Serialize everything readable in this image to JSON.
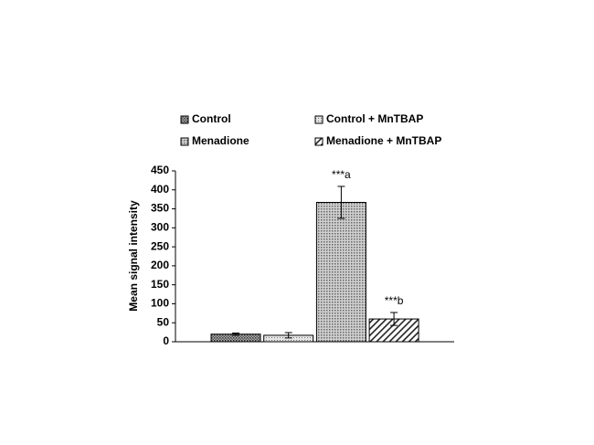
{
  "chart_data": {
    "type": "bar",
    "y_label": "Mean signal intensity",
    "ylim": [
      0,
      450
    ],
    "yticks": [
      0,
      50,
      100,
      150,
      200,
      250,
      300,
      350,
      400,
      450
    ],
    "series": [
      {
        "name": "Control",
        "pattern": "dark",
        "values": [
          20
        ],
        "errors": [
          3
        ]
      },
      {
        "name": "Control + MnTBAP",
        "pattern": "light",
        "values": [
          17
        ],
        "errors": [
          7
        ]
      },
      {
        "name": "Menadione",
        "pattern": "medium",
        "values": [
          367
        ],
        "errors": [
          42
        ],
        "annotation": "***a"
      },
      {
        "name": "Menadione + MnTBAP",
        "pattern": "hatch",
        "values": [
          60
        ],
        "errors": [
          17
        ],
        "annotation": "***b"
      }
    ]
  }
}
